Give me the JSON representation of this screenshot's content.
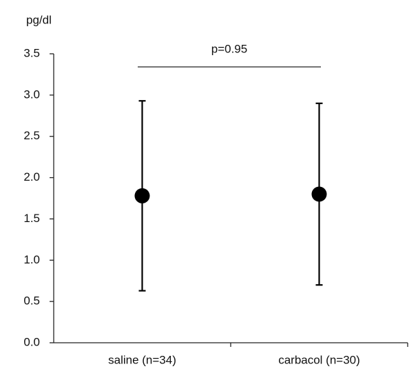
{
  "chart_data": {
    "type": "errorbar",
    "y_label": "pg/dl",
    "categories": [
      "saline (n=34)",
      "carbacol (n=30)"
    ],
    "values": [
      1.78,
      1.8
    ],
    "errors": [
      1.15,
      1.1
    ],
    "color": "#000000",
    "ylim": [
      0,
      3.5
    ],
    "yticks": [
      {
        "value": 0,
        "label": "0.0"
      },
      0.5,
      {
        "value": 1,
        "label": "1.0"
      },
      1.5,
      {
        "value": 2,
        "label": "2.0"
      },
      2.5,
      {
        "value": 3,
        "label": "3.0"
      },
      3.5
    ],
    "annotations": [
      {
        "text": "p=0.95"
      }
    ]
  }
}
